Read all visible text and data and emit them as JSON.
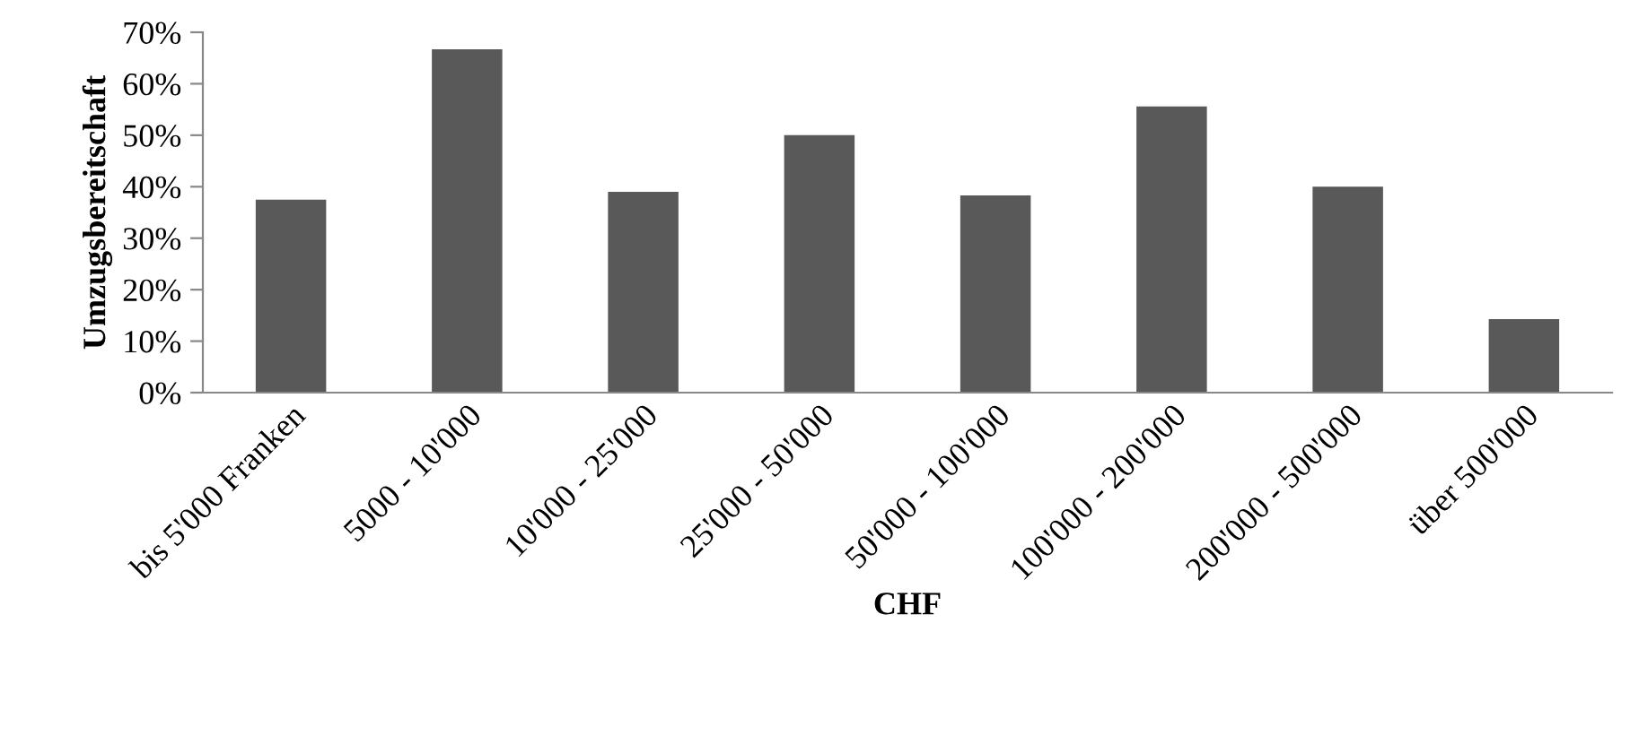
{
  "chart_data": {
    "type": "bar",
    "categories": [
      "bis 5'000 Franken",
      "5000 - 10'000",
      "10'000 - 25'000",
      "25'000 - 50'000",
      "50'000 - 100'000",
      "100'000 - 200'000",
      "200'000 - 500'000",
      "über 500'000"
    ],
    "values": [
      37.5,
      66.7,
      39,
      50,
      38.3,
      55.6,
      40,
      14.3
    ],
    "color": "#595959",
    "xlabel": "CHF",
    "ylabel": "Umzugsbereitschaft",
    "ylim": [
      0,
      70
    ],
    "yticks": [
      {
        "value": 0,
        "label": "0%"
      },
      {
        "value": 10,
        "label": "10%"
      },
      {
        "value": 20,
        "label": "20%"
      },
      {
        "value": 30,
        "label": "30%"
      },
      {
        "value": 40,
        "label": "40%"
      },
      {
        "value": 50,
        "label": "50%"
      },
      {
        "value": 60,
        "label": "60%"
      },
      {
        "value": 70,
        "label": "70%"
      }
    ],
    "grid": false,
    "legend": false
  }
}
